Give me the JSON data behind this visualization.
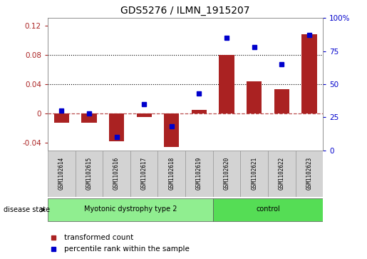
{
  "title": "GDS5276 / ILMN_1915207",
  "samples": [
    "GSM1102614",
    "GSM1102615",
    "GSM1102616",
    "GSM1102617",
    "GSM1102618",
    "GSM1102619",
    "GSM1102620",
    "GSM1102621",
    "GSM1102622",
    "GSM1102623"
  ],
  "bar_values": [
    -0.013,
    -0.013,
    -0.038,
    -0.005,
    -0.046,
    0.005,
    0.08,
    0.044,
    0.033,
    0.108
  ],
  "dot_pct": [
    30,
    28,
    10,
    35,
    18,
    43,
    85,
    78,
    65,
    87
  ],
  "bar_color": "#AA2222",
  "dot_color": "#0000CC",
  "ylim_left": [
    -0.05,
    0.13
  ],
  "ylim_right": [
    0,
    100
  ],
  "yticks_left": [
    -0.04,
    0.0,
    0.04,
    0.08,
    0.12
  ],
  "yticks_right": [
    0,
    25,
    50,
    75,
    100
  ],
  "groups": [
    {
      "label": "Myotonic dystrophy type 2",
      "start": 0,
      "end": 6,
      "color": "#90EE90"
    },
    {
      "label": "control",
      "start": 6,
      "end": 10,
      "color": "#55DD55"
    }
  ],
  "disease_state_label": "disease state",
  "legend_bar_label": "transformed count",
  "legend_dot_label": "percentile rank within the sample",
  "dotted_lines": [
    0.04,
    0.08
  ],
  "sample_box_color": "#D3D3D3",
  "sample_box_edge": "#999999"
}
